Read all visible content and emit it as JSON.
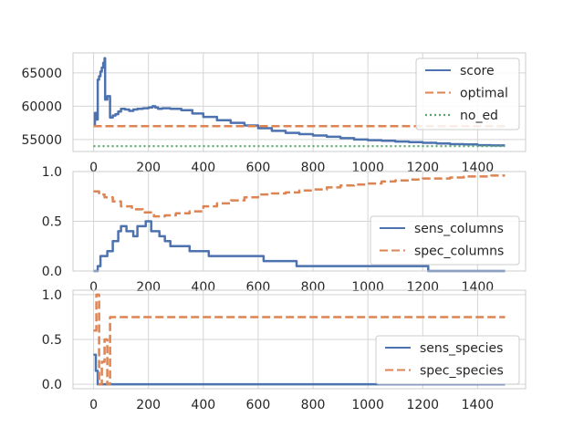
{
  "colors": {
    "blue": "#4c72b0",
    "orange": "#dd8452",
    "green": "#55a868",
    "grid": "#d5d5d5",
    "frame": "#cccccc"
  },
  "chart_data": [
    {
      "type": "line",
      "xlim": [
        -75,
        1575
      ],
      "ylim": [
        53200,
        68000
      ],
      "xticks": [
        0,
        200,
        400,
        600,
        800,
        1000,
        1200,
        1400
      ],
      "yticks": [
        55000,
        60000,
        65000
      ],
      "ytick_labels": [
        "55000",
        "60000",
        "65000"
      ],
      "grid": true,
      "legend": "top-right",
      "series": [
        {
          "name": "score",
          "color": "#4c72b0",
          "style": "solid",
          "step": true,
          "points": [
            [
              0,
              57000
            ],
            [
              5,
              59000
            ],
            [
              10,
              58000
            ],
            [
              15,
              64000
            ],
            [
              20,
              64500
            ],
            [
              25,
              65200
            ],
            [
              30,
              65800
            ],
            [
              35,
              66500
            ],
            [
              40,
              67200
            ],
            [
              42,
              61000
            ],
            [
              50,
              61500
            ],
            [
              55,
              61500
            ],
            [
              60,
              58300
            ],
            [
              70,
              58600
            ],
            [
              80,
              58800
            ],
            [
              90,
              59200
            ],
            [
              100,
              59600
            ],
            [
              115,
              59500
            ],
            [
              130,
              59300
            ],
            [
              145,
              59500
            ],
            [
              160,
              59600
            ],
            [
              180,
              59700
            ],
            [
              200,
              59800
            ],
            [
              215,
              60000
            ],
            [
              225,
              59800
            ],
            [
              235,
              59600
            ],
            [
              250,
              59700
            ],
            [
              280,
              59600
            ],
            [
              320,
              59400
            ],
            [
              360,
              58900
            ],
            [
              400,
              58400
            ],
            [
              450,
              57900
            ],
            [
              500,
              57500
            ],
            [
              550,
              57100
            ],
            [
              600,
              56700
            ],
            [
              650,
              56300
            ],
            [
              700,
              56000
            ],
            [
              750,
              55800
            ],
            [
              800,
              55600
            ],
            [
              850,
              55400
            ],
            [
              900,
              55200
            ],
            [
              950,
              55000
            ],
            [
              1000,
              54900
            ],
            [
              1050,
              54800
            ],
            [
              1100,
              54700
            ],
            [
              1150,
              54600
            ],
            [
              1200,
              54500
            ],
            [
              1250,
              54400
            ],
            [
              1300,
              54300
            ],
            [
              1350,
              54250
            ],
            [
              1400,
              54150
            ],
            [
              1450,
              54100
            ],
            [
              1500,
              54100
            ]
          ]
        },
        {
          "name": "optimal",
          "color": "#dd8452",
          "style": "dashed",
          "step": false,
          "points": [
            [
              0,
              57000
            ],
            [
              1500,
              57000
            ]
          ]
        },
        {
          "name": "no_ed",
          "color": "#55a868",
          "style": "dotted",
          "step": false,
          "points": [
            [
              0,
              54000
            ],
            [
              1500,
              54000
            ]
          ]
        }
      ]
    },
    {
      "type": "line",
      "xlim": [
        -75,
        1575
      ],
      "ylim": [
        0,
        1.0
      ],
      "xticks": [
        0,
        200,
        400,
        600,
        800,
        1000,
        1200,
        1400
      ],
      "yticks": [
        0,
        0.5,
        1.0
      ],
      "ytick_labels": [
        "0.0",
        "0.5",
        "1.0"
      ],
      "grid": true,
      "legend": "lower-right",
      "series": [
        {
          "name": "sens_columns",
          "color": "#4c72b0",
          "style": "solid",
          "step": true,
          "points": [
            [
              0,
              0
            ],
            [
              15,
              0.05
            ],
            [
              25,
              0.15
            ],
            [
              50,
              0.2
            ],
            [
              70,
              0.3
            ],
            [
              90,
              0.4
            ],
            [
              100,
              0.45
            ],
            [
              120,
              0.4
            ],
            [
              145,
              0.35
            ],
            [
              160,
              0.45
            ],
            [
              190,
              0.5
            ],
            [
              210,
              0.4
            ],
            [
              240,
              0.35
            ],
            [
              260,
              0.3
            ],
            [
              280,
              0.25
            ],
            [
              300,
              0.25
            ],
            [
              350,
              0.2
            ],
            [
              420,
              0.15
            ],
            [
              620,
              0.1
            ],
            [
              740,
              0.05
            ],
            [
              1220,
              0.0
            ],
            [
              1500,
              0.0
            ]
          ]
        },
        {
          "name": "spec_columns",
          "color": "#dd8452",
          "style": "dashed",
          "step": true,
          "points": [
            [
              0,
              0.8
            ],
            [
              20,
              0.77
            ],
            [
              40,
              0.74
            ],
            [
              70,
              0.7
            ],
            [
              100,
              0.65
            ],
            [
              140,
              0.62
            ],
            [
              180,
              0.59
            ],
            [
              220,
              0.55
            ],
            [
              260,
              0.56
            ],
            [
              300,
              0.58
            ],
            [
              350,
              0.6
            ],
            [
              400,
              0.65
            ],
            [
              450,
              0.68
            ],
            [
              500,
              0.71
            ],
            [
              550,
              0.74
            ],
            [
              600,
              0.77
            ],
            [
              650,
              0.78
            ],
            [
              700,
              0.79
            ],
            [
              750,
              0.81
            ],
            [
              800,
              0.82
            ],
            [
              850,
              0.84
            ],
            [
              900,
              0.86
            ],
            [
              950,
              0.87
            ],
            [
              1000,
              0.88
            ],
            [
              1050,
              0.9
            ],
            [
              1100,
              0.91
            ],
            [
              1150,
              0.92
            ],
            [
              1200,
              0.93
            ],
            [
              1250,
              0.93
            ],
            [
              1300,
              0.94
            ],
            [
              1350,
              0.95
            ],
            [
              1400,
              0.95
            ],
            [
              1450,
              0.96
            ],
            [
              1500,
              0.96
            ]
          ]
        }
      ]
    },
    {
      "type": "line",
      "xlim": [
        -75,
        1575
      ],
      "ylim": [
        -0.05,
        1.05
      ],
      "xticks": [
        0,
        200,
        400,
        600,
        800,
        1000,
        1200,
        1400
      ],
      "xtick_labels": [
        "0",
        "200",
        "400",
        "600",
        "800",
        "1000",
        "1200",
        "1400"
      ],
      "yticks": [
        0,
        0.5,
        1.0
      ],
      "ytick_labels": [
        "0.0",
        "0.5",
        "1.0"
      ],
      "grid": true,
      "legend": "right",
      "series": [
        {
          "name": "sens_species",
          "color": "#4c72b0",
          "style": "solid",
          "step": true,
          "points": [
            [
              0,
              0.33
            ],
            [
              8,
              0.15
            ],
            [
              15,
              0.0
            ],
            [
              1500,
              0.0
            ]
          ]
        },
        {
          "name": "spec_species",
          "color": "#dd8452",
          "style": "dashed",
          "step": true,
          "points": [
            [
              0,
              0.6
            ],
            [
              10,
              1.0
            ],
            [
              20,
              0.0
            ],
            [
              30,
              0.25
            ],
            [
              40,
              0.5
            ],
            [
              50,
              0.0
            ],
            [
              60,
              0.75
            ],
            [
              1500,
              0.75
            ]
          ]
        }
      ]
    }
  ]
}
